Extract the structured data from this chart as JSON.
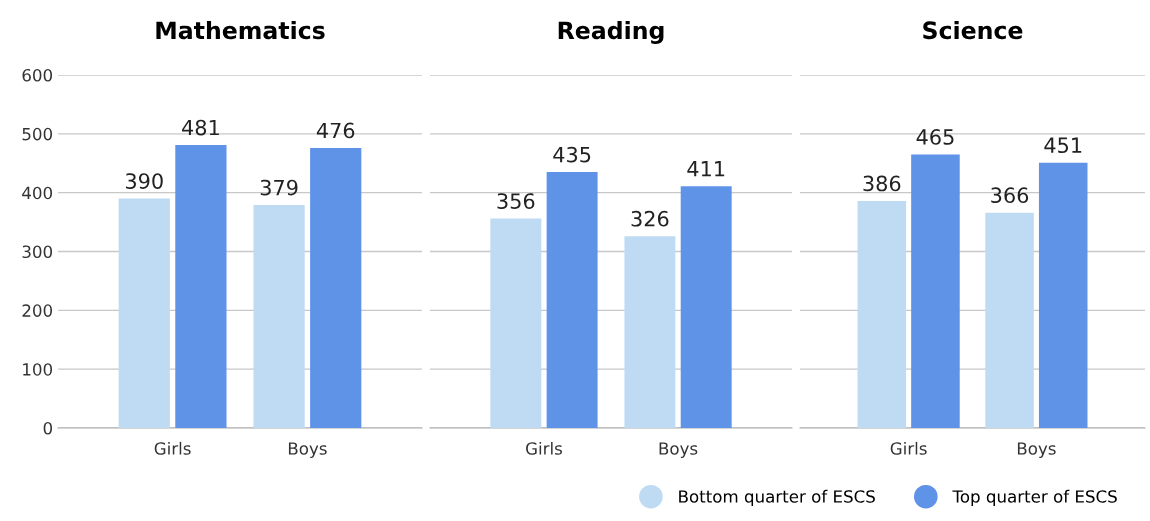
{
  "chart_data": [
    {
      "type": "bar",
      "title": "Mathematics",
      "categories": [
        "Girls",
        "Boys"
      ],
      "series": [
        {
          "name": "Bottom quarter of ESCS",
          "color": "#bfdbf3",
          "values": [
            390,
            379
          ]
        },
        {
          "name": "Top quarter of ESCS",
          "color": "#5f93e8",
          "values": [
            481,
            476
          ]
        }
      ],
      "data_labels": true,
      "ylim": [
        0,
        600
      ],
      "yticks": [
        0,
        100,
        200,
        300,
        400,
        500,
        600
      ],
      "grid": "y",
      "legend": "bottom right"
    },
    {
      "type": "bar",
      "title": "Reading",
      "categories": [
        "Girls",
        "Boys"
      ],
      "series": [
        {
          "color": "#bfdbf3",
          "values": [
            356,
            326
          ]
        },
        {
          "color": "#5f93e8",
          "values": [
            435,
            411
          ]
        }
      ],
      "data_labels": true,
      "ylim": [
        0,
        600
      ],
      "yticks": [
        0,
        100,
        200,
        300,
        400,
        500,
        600
      ],
      "grid": "y",
      "tick_labels": "x"
    },
    {
      "type": "bar",
      "title": "Science",
      "categories": [
        "Girls",
        "Boys"
      ],
      "series": [
        {
          "color": "#bfdbf3",
          "values": [
            386,
            366
          ]
        },
        {
          "color": "#5f93e8",
          "values": [
            465,
            451
          ]
        }
      ],
      "data_labels": true,
      "ylim": [
        0,
        600
      ],
      "yticks": [
        0,
        100,
        200,
        300,
        400,
        500,
        600
      ],
      "grid": "y",
      "tick_labels": "x"
    }
  ]
}
